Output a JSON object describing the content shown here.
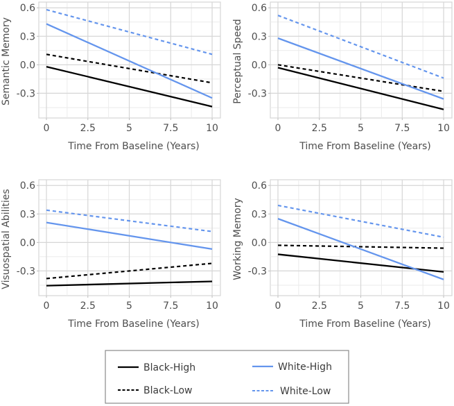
{
  "chart_data": [
    {
      "type": "line",
      "panel": "top-left",
      "xlabel": "Time From Baseline (Years)",
      "ylabel": "Semantic Memory",
      "xlim": [
        -0.46,
        10.5
      ],
      "ylim": [
        -0.56,
        0.66
      ],
      "xticks": [
        0,
        2.5,
        5,
        7.5,
        10
      ],
      "xtick_labels": [
        "0",
        "2.5",
        "5",
        "7.5",
        "10"
      ],
      "yticks": [
        0.6,
        0.3,
        0.0,
        -0.3
      ],
      "ytick_labels": [
        "0.6",
        "0.3",
        "0.0",
        "-0.3"
      ],
      "grid": true,
      "x": [
        0,
        10
      ],
      "series": [
        {
          "name": "Black-High",
          "values": [
            -0.02,
            -0.44
          ]
        },
        {
          "name": "Black-Low",
          "values": [
            0.11,
            -0.19
          ]
        },
        {
          "name": "White-High",
          "values": [
            0.43,
            -0.35
          ]
        },
        {
          "name": "White-Low",
          "values": [
            0.58,
            0.11
          ]
        }
      ]
    },
    {
      "type": "line",
      "panel": "top-right",
      "xlabel": "Time From Baseline (Years)",
      "ylabel": "Perceptual Speed",
      "xlim": [
        -0.46,
        10.5
      ],
      "ylim": [
        -0.56,
        0.66
      ],
      "xticks": [
        0,
        2.5,
        5,
        7.5,
        10
      ],
      "xtick_labels": [
        "0",
        "2.5",
        "5",
        "7.5",
        "10"
      ],
      "yticks": [
        0.6,
        0.3,
        0.0,
        -0.3
      ],
      "ytick_labels": [
        "0.6",
        "0.3",
        "0.0",
        "-0.3"
      ],
      "grid": true,
      "x": [
        0,
        10
      ],
      "series": [
        {
          "name": "Black-High",
          "values": [
            -0.03,
            -0.47
          ]
        },
        {
          "name": "Black-Low",
          "values": [
            0.0,
            -0.28
          ]
        },
        {
          "name": "White-High",
          "values": [
            0.28,
            -0.36
          ]
        },
        {
          "name": "White-Low",
          "values": [
            0.52,
            -0.14
          ]
        }
      ]
    },
    {
      "type": "line",
      "panel": "bottom-left",
      "xlabel": "Time From Baseline (Years)",
      "ylabel": "Visuospatial Abilities",
      "xlim": [
        -0.46,
        10.5
      ],
      "ylim": [
        -0.56,
        0.66
      ],
      "xticks": [
        0,
        2.5,
        5,
        7.5,
        10
      ],
      "xtick_labels": [
        "0",
        "2.5",
        "5",
        "7.5",
        "10"
      ],
      "yticks": [
        0.6,
        0.3,
        0.0,
        -0.3
      ],
      "ytick_labels": [
        "0.6",
        "0.3",
        "0.0",
        "-0.3"
      ],
      "grid": true,
      "x": [
        0,
        10
      ],
      "series": [
        {
          "name": "Black-High",
          "values": [
            -0.455,
            -0.41
          ]
        },
        {
          "name": "Black-Low",
          "values": [
            -0.38,
            -0.22
          ]
        },
        {
          "name": "White-High",
          "values": [
            0.21,
            -0.07
          ]
        },
        {
          "name": "White-Low",
          "values": [
            0.34,
            0.115
          ]
        }
      ]
    },
    {
      "type": "line",
      "panel": "bottom-right",
      "xlabel": "Time From Baseline (Years)",
      "ylabel": "Working Memory",
      "xlim": [
        -0.46,
        10.5
      ],
      "ylim": [
        -0.56,
        0.66
      ],
      "xticks": [
        0,
        2.5,
        5,
        7.5,
        10
      ],
      "xtick_labels": [
        "0",
        "2.5",
        "5",
        "7.5",
        "10"
      ],
      "yticks": [
        0.6,
        0.3,
        0.0,
        -0.3
      ],
      "ytick_labels": [
        "0.6",
        "0.3",
        "0.0",
        "-0.3"
      ],
      "grid": true,
      "x": [
        0,
        10
      ],
      "series": [
        {
          "name": "Black-High",
          "values": [
            -0.125,
            -0.31
          ]
        },
        {
          "name": "Black-Low",
          "values": [
            -0.03,
            -0.06
          ]
        },
        {
          "name": "White-High",
          "values": [
            0.25,
            -0.39
          ]
        },
        {
          "name": "White-Low",
          "values": [
            0.39,
            0.055
          ]
        }
      ]
    }
  ],
  "legend": {
    "placement": "bottom-center",
    "items": [
      {
        "name": "Black-High",
        "label": "Black-High",
        "color": "#000000",
        "dashed": false
      },
      {
        "name": "White-High",
        "label": "White-High",
        "color": "#6495ed",
        "dashed": false
      },
      {
        "name": "Black-Low",
        "label": "Black-Low",
        "color": "#000000",
        "dashed": true
      },
      {
        "name": "White-Low",
        "label": "White-Low",
        "color": "#6495ed",
        "dashed": true
      }
    ]
  },
  "series_styles": {
    "Black-High": {
      "color": "#000000",
      "dashed": false
    },
    "Black-Low": {
      "color": "#000000",
      "dashed": true
    },
    "White-High": {
      "color": "#6495ed",
      "dashed": false
    },
    "White-Low": {
      "color": "#6495ed",
      "dashed": true
    }
  },
  "colors": {
    "black_group": "#000000",
    "white_group": "#6495ed",
    "grid_major": "#d6d6d6",
    "grid_minor": "#ebebeb",
    "text": "#4d4d4d"
  }
}
